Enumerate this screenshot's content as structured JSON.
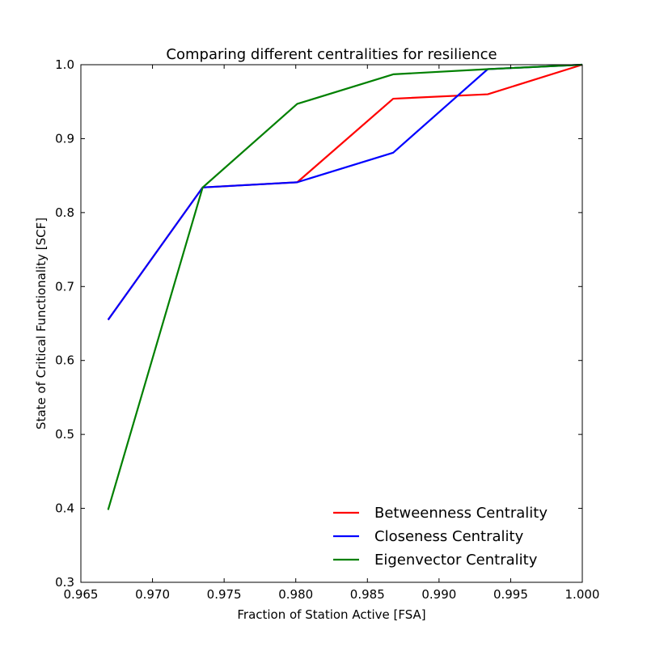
{
  "chart_data": {
    "type": "line",
    "title": "Comparing different centralities for resilience",
    "xlabel": "Fraction of Station Active [FSA]",
    "ylabel": "State of Critical Functionality [SCF]",
    "xlim": [
      0.965,
      1.0
    ],
    "ylim": [
      0.3,
      1.0
    ],
    "xticks": [
      "0.965",
      "0.970",
      "0.975",
      "0.980",
      "0.985",
      "0.990",
      "0.995",
      "1.000"
    ],
    "yticks": [
      "0.3",
      "0.4",
      "0.5",
      "0.6",
      "0.7",
      "0.8",
      "0.9",
      "1.0"
    ],
    "grid": false,
    "legend_position": "lower-right",
    "series": [
      {
        "name": "Betweenness Centrality",
        "color": "#ff0000",
        "x": [
          0.9669,
          0.9735,
          0.9801,
          0.9868,
          0.9934,
          1.0
        ],
        "y": [
          0.655,
          0.834,
          0.841,
          0.954,
          0.96,
          1.0
        ]
      },
      {
        "name": "Closeness Centrality",
        "color": "#0000ff",
        "x": [
          0.9669,
          0.9735,
          0.9801,
          0.9868,
          0.9934,
          1.0
        ],
        "y": [
          0.655,
          0.834,
          0.841,
          0.881,
          0.994,
          1.0
        ]
      },
      {
        "name": "Eigenvector Centrality",
        "color": "#008000",
        "x": [
          0.9669,
          0.9735,
          0.9801,
          0.9868,
          0.9934,
          1.0
        ],
        "y": [
          0.398,
          0.834,
          0.947,
          0.987,
          0.994,
          1.0
        ]
      }
    ]
  }
}
